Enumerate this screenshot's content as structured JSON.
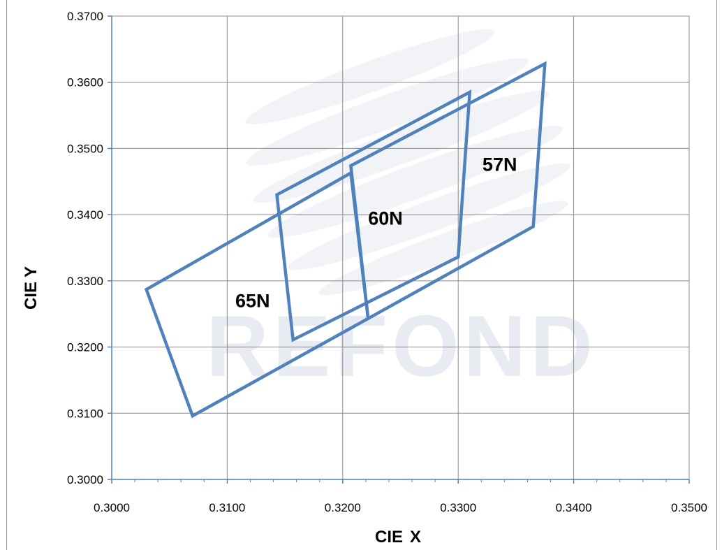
{
  "chart_data": {
    "type": "scatter",
    "xlabel_bold": "CIE",
    "xlabel_rest": "X",
    "ylabel_bold": "CIE",
    "ylabel_rest": "Y",
    "xlim": [
      0.3,
      0.35
    ],
    "ylim": [
      0.3,
      0.37
    ],
    "xticks": [
      0.3,
      0.31,
      0.32,
      0.33,
      0.34,
      0.35
    ],
    "xtick_labels": [
      "0.3000",
      "0.3100",
      "0.3200",
      "0.3300",
      "0.3400",
      "0.3500"
    ],
    "yticks": [
      0.3,
      0.31,
      0.32,
      0.33,
      0.34,
      0.35,
      0.36,
      0.37
    ],
    "ytick_labels": [
      "0.3000",
      "0.3100",
      "0.3200",
      "0.3300",
      "0.3400",
      "0.3500",
      "0.3600",
      "0.3700"
    ],
    "grid": true,
    "series": [
      {
        "name": "65N",
        "label_at": [
          0.3107,
          0.326
        ],
        "points": [
          [
            0.303,
            0.3287
          ],
          [
            0.3207,
            0.3463
          ],
          [
            0.3222,
            0.3243
          ],
          [
            0.307,
            0.3096
          ]
        ]
      },
      {
        "name": "60N",
        "label_at": [
          0.3222,
          0.3385
        ],
        "points": [
          [
            0.3143,
            0.343
          ],
          [
            0.331,
            0.3585
          ],
          [
            0.33,
            0.3336
          ],
          [
            0.3157,
            0.3211
          ]
        ]
      },
      {
        "name": "57N",
        "label_at": [
          0.3321,
          0.3466
        ],
        "points": [
          [
            0.3207,
            0.3474
          ],
          [
            0.3375,
            0.3628
          ],
          [
            0.3365,
            0.3382
          ],
          [
            0.3222,
            0.3243
          ]
        ]
      }
    ],
    "line_color": "#4f81bd",
    "grid_color": "#8c8c8c",
    "axis_color": "#4f81bd"
  },
  "watermark": {
    "text": "REFOND"
  }
}
